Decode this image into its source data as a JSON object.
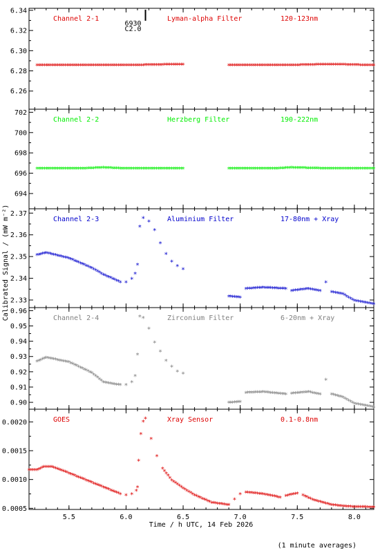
{
  "chart_data": {
    "type": "scatter",
    "x_axis": {
      "label": "Time / h UTC, 14 Feb 2026",
      "range": [
        5.15,
        8.17
      ],
      "ticks": [
        "5.5",
        "6.0",
        "6.5",
        "7.0",
        "7.5",
        "8.0"
      ]
    },
    "y_axis_label": "Calibrated Signal / (mW m⁻²)",
    "footnote": "(1 minute averages)",
    "flare_marker": {
      "x": 6.17,
      "lines": [
        "6930",
        "C2.0"
      ]
    },
    "panels": [
      {
        "labels": [
          "Channel 2-1",
          "Lyman-alpha Filter",
          "120-123nm"
        ],
        "color": "#dd0000",
        "ylim": [
          6.242,
          6.342
        ],
        "yticks": [
          "6.26",
          "6.28",
          "6.30",
          "6.32",
          "6.34"
        ],
        "series": [
          {
            "x": [
              5.22,
              5.6,
              6.0,
              6.5
            ],
            "y": [
              6.285,
              6.285,
              6.285,
              6.286
            ]
          },
          {
            "x": [
              6.9,
              7.4,
              7.8,
              8.17
            ],
            "y": [
              6.285,
              6.285,
              6.286,
              6.285
            ]
          }
        ]
      },
      {
        "labels": [
          "Channel 2-2",
          "Herzberg Filter",
          "190-222nm"
        ],
        "color": "#00ee00",
        "ylim": [
          692.5,
          702.3
        ],
        "yticks": [
          "694",
          "696",
          "698",
          "700",
          "702"
        ],
        "series": [
          {
            "x": [
              5.22,
              5.6,
              5.8,
              6.0,
              6.5
            ],
            "y": [
              696.4,
              696.4,
              696.5,
              696.4,
              696.4
            ]
          },
          {
            "x": [
              6.9,
              7.3,
              7.45,
              7.8,
              8.17
            ],
            "y": [
              696.4,
              696.4,
              696.5,
              696.4,
              696.4
            ]
          }
        ]
      },
      {
        "labels": [
          "Channel 2-3",
          "Aluminium Filter",
          "17-80nm + Xray"
        ],
        "color": "#0000cc",
        "ylim": [
          2.3265,
          2.372
        ],
        "yticks": [
          "2.33",
          "2.34",
          "2.35",
          "2.36",
          "2.37"
        ],
        "series": [
          {
            "x": [
              5.22,
              5.3,
              5.5,
              5.7,
              5.8,
              5.95,
              6.0,
              6.05,
              6.08,
              6.1,
              6.12,
              6.15,
              6.2,
              6.25,
              6.3,
              6.35,
              6.4,
              6.45,
              6.5
            ],
            "y": [
              2.3505,
              2.3515,
              2.349,
              2.3445,
              2.3415,
              2.338,
              2.338,
              2.3395,
              2.342,
              2.346,
              2.3635,
              2.3675,
              2.366,
              2.362,
              2.356,
              2.351,
              2.3475,
              2.3455,
              2.344
            ]
          },
          {
            "x": [
              6.9,
              7.0,
              7.05,
              7.2,
              7.4,
              7.45,
              7.6,
              7.7,
              7.75,
              7.8,
              7.9,
              8.0,
              8.17
            ],
            "y": [
              2.3315,
              2.331,
              2.335,
              2.3355,
              2.335,
              2.334,
              2.335,
              2.334,
              2.338,
              2.3335,
              2.3325,
              2.3295,
              2.328
            ]
          }
        ]
      },
      {
        "labels": [
          "Channel 2-4",
          "Zirconium Filter",
          "6-20nm + Xray"
        ],
        "color": "#808080",
        "ylim": [
          0.8955,
          0.962
        ],
        "yticks": [
          "0.90",
          "0.91",
          "0.92",
          "0.93",
          "0.94",
          "0.95",
          "0.96"
        ],
        "series": [
          {
            "x": [
              5.22,
              5.3,
              5.5,
              5.7,
              5.8,
              5.95,
              6.0,
              6.05,
              6.08,
              6.1,
              6.12,
              6.15,
              6.2,
              6.25,
              6.3,
              6.35,
              6.4,
              6.45,
              6.5
            ],
            "y": [
              0.9265,
              0.929,
              0.926,
              0.919,
              0.913,
              0.911,
              0.911,
              0.913,
              0.917,
              0.931,
              0.956,
              0.955,
              0.948,
              0.939,
              0.933,
              0.927,
              0.923,
              0.92,
              0.9185
            ]
          },
          {
            "x": [
              6.9,
              7.0,
              7.05,
              7.2,
              7.4,
              7.45,
              7.6,
              7.7,
              7.75,
              7.8,
              7.9,
              8.0,
              8.17
            ],
            "y": [
              0.8995,
              0.9,
              0.906,
              0.9065,
              0.905,
              0.9055,
              0.9065,
              0.905,
              0.9145,
              0.905,
              0.903,
              0.899,
              0.8965
            ]
          }
        ]
      },
      {
        "labels": [
          "GOES",
          "Xray Sensor",
          "0.1-0.8nm"
        ],
        "color": "#dd0000",
        "ylim": [
          0.00048,
          0.00222
        ],
        "yticks": [
          "0.0005",
          "0.0010",
          "0.0015",
          "0.0020"
        ],
        "series": [
          {
            "x": [
              5.15,
              5.22,
              5.28,
              5.35,
              5.45,
              5.6,
              5.8,
              5.95,
              6.0,
              6.05,
              6.09,
              6.1,
              6.11,
              6.13,
              6.15,
              6.17,
              6.22,
              6.27,
              6.32,
              6.4,
              6.5,
              6.6,
              6.75,
              6.9,
              6.95,
              7.0,
              7.05,
              7.2,
              7.35,
              7.4,
              7.5,
              7.55,
              7.65,
              7.8,
              7.95,
              8.17
            ],
            "y": [
              0.00116,
              0.00116,
              0.00121,
              0.00121,
              0.00114,
              0.00102,
              0.00086,
              0.00074,
              0.00072,
              0.00074,
              0.0008,
              0.00086,
              0.00132,
              0.00178,
              0.002,
              0.00205,
              0.0017,
              0.0014,
              0.00118,
              0.00098,
              0.00084,
              0.00072,
              0.00059,
              0.00055,
              0.00065,
              0.00074,
              0.00077,
              0.00074,
              0.00068,
              0.00071,
              0.00075,
              0.00072,
              0.00063,
              0.00055,
              0.00052,
              0.00051
            ]
          }
        ]
      }
    ]
  }
}
